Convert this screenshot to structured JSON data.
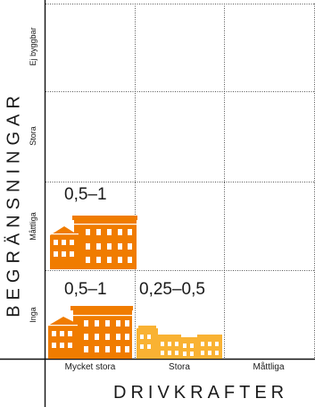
{
  "y_axis": {
    "title": "BEGRÄNSNINGAR",
    "categories": [
      "Inga",
      "Måttliga",
      "Stora",
      "Ej byggbar"
    ]
  },
  "x_axis": {
    "title": "DRIVKRAFTER",
    "categories": [
      "Mycket stora",
      "Stora",
      "Måttliga"
    ]
  },
  "cells": [
    {
      "row": "Måttliga",
      "column": "Mycket stora",
      "value": "0,5–1",
      "icon": "building-cluster-icon",
      "color": "#f07c00"
    },
    {
      "row": "Inga",
      "column": "Mycket stora",
      "value": "0,5–1",
      "icon": "building-cluster-icon",
      "color": "#f07c00"
    },
    {
      "row": "Inga",
      "column": "Stora",
      "value": "0,25–0,5",
      "icon": "building-cluster-icon",
      "color": "#f9b233"
    }
  ]
}
